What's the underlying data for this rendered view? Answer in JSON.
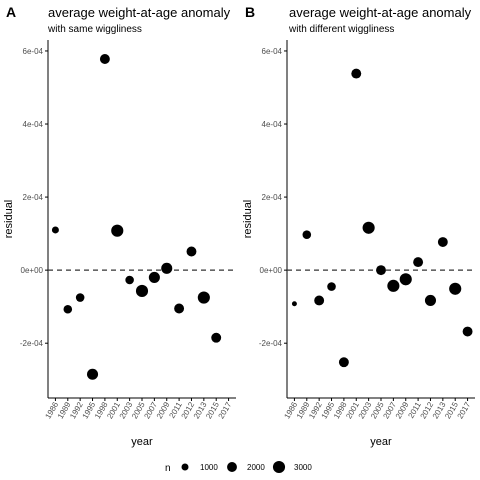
{
  "chart_data": [
    {
      "type": "scatter",
      "panel_tag": "A",
      "title": "average weight-at-age anomaly",
      "subtitle": "with same wiggliness",
      "xlabel": "year",
      "ylabel": "residual",
      "x_categories": [
        "1986",
        "1989",
        "1992",
        "1995",
        "1998",
        "2001",
        "2003",
        "2005",
        "2007",
        "2009",
        "2011",
        "2012",
        "2013",
        "2015",
        "2017"
      ],
      "y_ticks": [
        -0.0002,
        0,
        0.0002,
        0.0004,
        0.0006
      ],
      "y_tick_labels": [
        "-2e-04",
        "0e+00",
        "2e-04",
        "4e-04",
        "6e-04"
      ],
      "ylim": [
        -0.00035,
        0.00063
      ],
      "reference_line": {
        "y": 0,
        "style": "dashed"
      },
      "points": [
        {
          "x": "1986",
          "y": 0.00011,
          "n": 1000
        },
        {
          "x": "1989",
          "y": -0.000107,
          "n": 1500
        },
        {
          "x": "1992",
          "y": -7.5e-05,
          "n": 1500
        },
        {
          "x": "1995",
          "y": -0.000285,
          "n": 2500
        },
        {
          "x": "1998",
          "y": 0.000578,
          "n": 2000
        },
        {
          "x": "2001",
          "y": 0.000108,
          "n": 3000
        },
        {
          "x": "2003",
          "y": -2.7e-05,
          "n": 1500
        },
        {
          "x": "2005",
          "y": -5.7e-05,
          "n": 3000
        },
        {
          "x": "2007",
          "y": -2e-05,
          "n": 2500
        },
        {
          "x": "2009",
          "y": 5e-06,
          "n": 2500
        },
        {
          "x": "2011",
          "y": -0.000105,
          "n": 2000
        },
        {
          "x": "2012",
          "y": 5.1e-05,
          "n": 2000
        },
        {
          "x": "2013",
          "y": -7.5e-05,
          "n": 3000
        },
        {
          "x": "2015",
          "y": -0.000185,
          "n": 2000
        }
      ]
    },
    {
      "type": "scatter",
      "panel_tag": "B",
      "title": "average weight-at-age anomaly",
      "subtitle": "with different wiggliness",
      "xlabel": "year",
      "ylabel": "residual",
      "x_categories": [
        "1986",
        "1989",
        "1992",
        "1995",
        "1998",
        "2001",
        "2003",
        "2005",
        "2007",
        "2009",
        "2011",
        "2012",
        "2013",
        "2015",
        "2017"
      ],
      "y_ticks": [
        -0.0002,
        0,
        0.0002,
        0.0004,
        0.0006
      ],
      "y_tick_labels": [
        "-2e-04",
        "0e+00",
        "2e-04",
        "4e-04",
        "6e-04"
      ],
      "ylim": [
        -0.00035,
        0.00063
      ],
      "reference_line": {
        "y": 0,
        "style": "dashed"
      },
      "points": [
        {
          "x": "1986",
          "y": -9.2e-05,
          "n": 500
        },
        {
          "x": "1989",
          "y": 9.7e-05,
          "n": 1500
        },
        {
          "x": "1992",
          "y": -8.3e-05,
          "n": 2000
        },
        {
          "x": "1995",
          "y": -4.5e-05,
          "n": 1500
        },
        {
          "x": "1998",
          "y": -0.000252,
          "n": 2000
        },
        {
          "x": "2001",
          "y": 0.000538,
          "n": 2000
        },
        {
          "x": "2003",
          "y": 0.000116,
          "n": 3000
        },
        {
          "x": "2005",
          "y": 0.0,
          "n": 2000
        },
        {
          "x": "2007",
          "y": -4.3e-05,
          "n": 3000
        },
        {
          "x": "2009",
          "y": -2.5e-05,
          "n": 3000
        },
        {
          "x": "2011",
          "y": 2.2e-05,
          "n": 2000
        },
        {
          "x": "2012",
          "y": -8.3e-05,
          "n": 2500
        },
        {
          "x": "2013",
          "y": 7.7e-05,
          "n": 2000
        },
        {
          "x": "2015",
          "y": -5.1e-05,
          "n": 3000
        },
        {
          "x": "2017",
          "y": -0.000168,
          "n": 2000
        }
      ]
    }
  ],
  "legend": {
    "title": "n",
    "placement": "bottom",
    "entries": [
      {
        "label": "1000",
        "n": 1000
      },
      {
        "label": "2000",
        "n": 2000
      },
      {
        "label": "3000",
        "n": 3000
      }
    ]
  },
  "colors": {
    "point": "#000000",
    "axis": "#000000",
    "tick_label": "#4d4d4d",
    "reference_line": "#333333"
  }
}
